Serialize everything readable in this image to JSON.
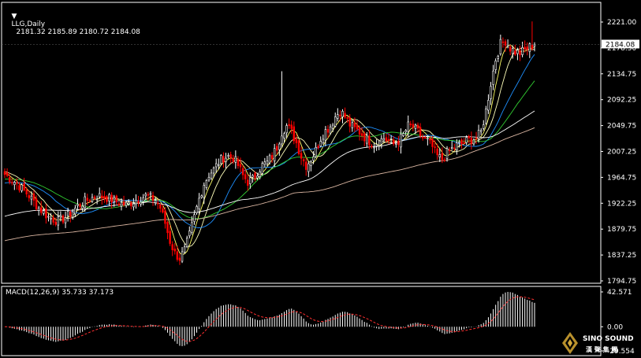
{
  "colors": {
    "background": "#000000",
    "frame": "#ffffff",
    "bull_candle": "#ffffff",
    "bear_candle": "#ff0000",
    "ma_5": "#ffff66",
    "ma_10": "#ffffbb",
    "ma_20": "#1e90ff",
    "ma_30": "#32cd32",
    "ma_60": "#ffffff",
    "ma_120": "#d8b4a0",
    "macd_hist": "#ffffff",
    "macd_signal": "#ff3030",
    "price_tag_bg": "#ffffff",
    "price_tag_text": "#000000"
  },
  "header": {
    "arrow_icon": "triangle-down-icon",
    "symbol": "LLG,Daily",
    "ohlc": "2181.32 2185.89 2180.72 2184.08"
  },
  "macd_header": "MACD(12,26,9) 35.733 37.173",
  "current_price": "2184.08",
  "price_axis_labels": [
    "2221.00",
    "2178.50",
    "2134.75",
    "2092.25",
    "2049.75",
    "2007.25",
    "1964.75",
    "1922.25",
    "1879.75",
    "1837.25",
    "1794.75"
  ],
  "macd_axis_labels": [
    "42.571",
    "0.00",
    "-29.554"
  ],
  "logo": {
    "brand": "SINO SOUND",
    "sub": "漢 聲 集 團"
  },
  "chart_data": [
    {
      "type": "candlestick",
      "title": "LLG,Daily",
      "ylim": [
        1794.75,
        2221.0
      ],
      "last_ohlc": {
        "open": 2181.32,
        "high": 2185.89,
        "low": 2180.72,
        "close": 2184.08
      },
      "anchors": [
        [
          0,
          1970
        ],
        [
          5,
          1955
        ],
        [
          10,
          1935
        ],
        [
          14,
          1915
        ],
        [
          18,
          1900
        ],
        [
          22,
          1893
        ],
        [
          26,
          1902
        ],
        [
          30,
          1918
        ],
        [
          34,
          1928
        ],
        [
          38,
          1935
        ],
        [
          42,
          1932
        ],
        [
          46,
          1925
        ],
        [
          50,
          1920
        ],
        [
          54,
          1928
        ],
        [
          58,
          1935
        ],
        [
          62,
          1928
        ],
        [
          64,
          1915
        ],
        [
          66,
          1890
        ],
        [
          68,
          1860
        ],
        [
          70,
          1840
        ],
        [
          72,
          1832
        ],
        [
          74,
          1845
        ],
        [
          76,
          1870
        ],
        [
          78,
          1900
        ],
        [
          80,
          1930
        ],
        [
          82,
          1955
        ],
        [
          84,
          1970
        ],
        [
          86,
          1978
        ],
        [
          88,
          1990
        ],
        [
          90,
          1998
        ],
        [
          92,
          2000
        ],
        [
          94,
          1998
        ],
        [
          96,
          1985
        ],
        [
          98,
          1968
        ],
        [
          100,
          1958
        ],
        [
          102,
          1962
        ],
        [
          104,
          1975
        ],
        [
          106,
          1985
        ],
        [
          108,
          1990
        ],
        [
          110,
          2000
        ],
        [
          112,
          2015
        ],
        [
          114,
          2040
        ],
        [
          116,
          2050
        ],
        [
          118,
          2040
        ],
        [
          120,
          2022
        ],
        [
          122,
          2000
        ],
        [
          124,
          1985
        ],
        [
          126,
          1995
        ],
        [
          128,
          2010
        ],
        [
          130,
          2030
        ],
        [
          132,
          2042
        ],
        [
          134,
          2050
        ],
        [
          136,
          2065
        ],
        [
          138,
          2075
        ],
        [
          140,
          2065
        ],
        [
          142,
          2052
        ],
        [
          144,
          2045
        ],
        [
          146,
          2040
        ],
        [
          148,
          2032
        ],
        [
          150,
          2025
        ],
        [
          152,
          2020
        ],
        [
          154,
          2025
        ],
        [
          156,
          2030
        ],
        [
          158,
          2025
        ],
        [
          160,
          2020
        ],
        [
          162,
          2025
        ],
        [
          164,
          2035
        ],
        [
          166,
          2050
        ],
        [
          168,
          2048
        ],
        [
          170,
          2040
        ],
        [
          172,
          2030
        ],
        [
          174,
          2025
        ],
        [
          176,
          2015
        ],
        [
          178,
          2000
        ],
        [
          180,
          1995
        ],
        [
          182,
          2005
        ],
        [
          184,
          2012
        ],
        [
          186,
          2018
        ],
        [
          188,
          2020
        ],
        [
          190,
          2025
        ],
        [
          192,
          2028
        ],
        [
          194,
          2030
        ],
        [
          196,
          2040
        ],
        [
          198,
          2075
        ],
        [
          200,
          2120
        ],
        [
          202,
          2160
        ],
        [
          204,
          2185
        ],
        [
          206,
          2190
        ],
        [
          208,
          2178
        ],
        [
          210,
          2172
        ],
        [
          212,
          2170
        ],
        [
          214,
          2175
        ],
        [
          216,
          2180
        ],
        [
          218,
          2184.08
        ]
      ],
      "spikes": [
        {
          "index": 114,
          "high": 2140
        },
        {
          "index": 217,
          "high": 2222
        }
      ],
      "moving_average_periods": [
        5,
        10,
        20,
        30,
        60,
        120
      ],
      "moving_average_seed_start": [
        1972,
        1975,
        1955,
        1962,
        1900,
        1860
      ]
    },
    {
      "type": "bar",
      "title": "MACD(12,26,9)",
      "macd_value": 35.733,
      "signal_value": 37.173,
      "ylim": [
        -29.554,
        42.571
      ],
      "fast": 12,
      "slow": 26,
      "signal": 9
    }
  ]
}
